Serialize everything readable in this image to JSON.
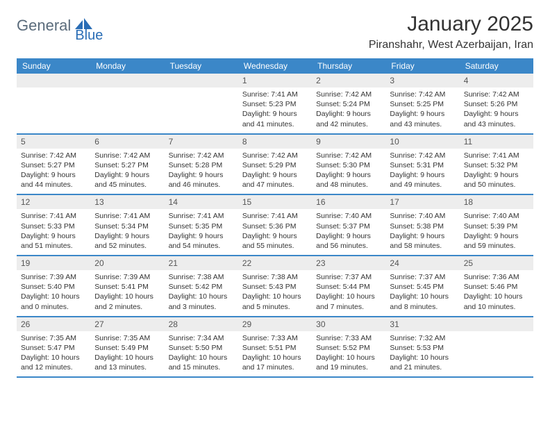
{
  "logo": {
    "part1": "General",
    "part2": "Blue"
  },
  "title": "January 2025",
  "location": "Piranshahr, West Azerbaijan, Iran",
  "colors": {
    "header_bg": "#3b87c8",
    "header_text": "#ffffff",
    "daynum_bg": "#ededed",
    "daynum_text": "#555555",
    "body_text": "#333333",
    "border": "#3b87c8",
    "logo_gray": "#5a6b7b",
    "logo_blue": "#2a6db5"
  },
  "weekdays": [
    "Sunday",
    "Monday",
    "Tuesday",
    "Wednesday",
    "Thursday",
    "Friday",
    "Saturday"
  ],
  "weeks": [
    [
      null,
      null,
      null,
      {
        "n": "1",
        "sr": "7:41 AM",
        "ss": "5:23 PM",
        "dl": "9 hours and 41 minutes."
      },
      {
        "n": "2",
        "sr": "7:42 AM",
        "ss": "5:24 PM",
        "dl": "9 hours and 42 minutes."
      },
      {
        "n": "3",
        "sr": "7:42 AM",
        "ss": "5:25 PM",
        "dl": "9 hours and 43 minutes."
      },
      {
        "n": "4",
        "sr": "7:42 AM",
        "ss": "5:26 PM",
        "dl": "9 hours and 43 minutes."
      }
    ],
    [
      {
        "n": "5",
        "sr": "7:42 AM",
        "ss": "5:27 PM",
        "dl": "9 hours and 44 minutes."
      },
      {
        "n": "6",
        "sr": "7:42 AM",
        "ss": "5:27 PM",
        "dl": "9 hours and 45 minutes."
      },
      {
        "n": "7",
        "sr": "7:42 AM",
        "ss": "5:28 PM",
        "dl": "9 hours and 46 minutes."
      },
      {
        "n": "8",
        "sr": "7:42 AM",
        "ss": "5:29 PM",
        "dl": "9 hours and 47 minutes."
      },
      {
        "n": "9",
        "sr": "7:42 AM",
        "ss": "5:30 PM",
        "dl": "9 hours and 48 minutes."
      },
      {
        "n": "10",
        "sr": "7:42 AM",
        "ss": "5:31 PM",
        "dl": "9 hours and 49 minutes."
      },
      {
        "n": "11",
        "sr": "7:41 AM",
        "ss": "5:32 PM",
        "dl": "9 hours and 50 minutes."
      }
    ],
    [
      {
        "n": "12",
        "sr": "7:41 AM",
        "ss": "5:33 PM",
        "dl": "9 hours and 51 minutes."
      },
      {
        "n": "13",
        "sr": "7:41 AM",
        "ss": "5:34 PM",
        "dl": "9 hours and 52 minutes."
      },
      {
        "n": "14",
        "sr": "7:41 AM",
        "ss": "5:35 PM",
        "dl": "9 hours and 54 minutes."
      },
      {
        "n": "15",
        "sr": "7:41 AM",
        "ss": "5:36 PM",
        "dl": "9 hours and 55 minutes."
      },
      {
        "n": "16",
        "sr": "7:40 AM",
        "ss": "5:37 PM",
        "dl": "9 hours and 56 minutes."
      },
      {
        "n": "17",
        "sr": "7:40 AM",
        "ss": "5:38 PM",
        "dl": "9 hours and 58 minutes."
      },
      {
        "n": "18",
        "sr": "7:40 AM",
        "ss": "5:39 PM",
        "dl": "9 hours and 59 minutes."
      }
    ],
    [
      {
        "n": "19",
        "sr": "7:39 AM",
        "ss": "5:40 PM",
        "dl": "10 hours and 0 minutes."
      },
      {
        "n": "20",
        "sr": "7:39 AM",
        "ss": "5:41 PM",
        "dl": "10 hours and 2 minutes."
      },
      {
        "n": "21",
        "sr": "7:38 AM",
        "ss": "5:42 PM",
        "dl": "10 hours and 3 minutes."
      },
      {
        "n": "22",
        "sr": "7:38 AM",
        "ss": "5:43 PM",
        "dl": "10 hours and 5 minutes."
      },
      {
        "n": "23",
        "sr": "7:37 AM",
        "ss": "5:44 PM",
        "dl": "10 hours and 7 minutes."
      },
      {
        "n": "24",
        "sr": "7:37 AM",
        "ss": "5:45 PM",
        "dl": "10 hours and 8 minutes."
      },
      {
        "n": "25",
        "sr": "7:36 AM",
        "ss": "5:46 PM",
        "dl": "10 hours and 10 minutes."
      }
    ],
    [
      {
        "n": "26",
        "sr": "7:35 AM",
        "ss": "5:47 PM",
        "dl": "10 hours and 12 minutes."
      },
      {
        "n": "27",
        "sr": "7:35 AM",
        "ss": "5:49 PM",
        "dl": "10 hours and 13 minutes."
      },
      {
        "n": "28",
        "sr": "7:34 AM",
        "ss": "5:50 PM",
        "dl": "10 hours and 15 minutes."
      },
      {
        "n": "29",
        "sr": "7:33 AM",
        "ss": "5:51 PM",
        "dl": "10 hours and 17 minutes."
      },
      {
        "n": "30",
        "sr": "7:33 AM",
        "ss": "5:52 PM",
        "dl": "10 hours and 19 minutes."
      },
      {
        "n": "31",
        "sr": "7:32 AM",
        "ss": "5:53 PM",
        "dl": "10 hours and 21 minutes."
      },
      null
    ]
  ],
  "labels": {
    "sunrise": "Sunrise:",
    "sunset": "Sunset:",
    "daylight": "Daylight:"
  }
}
